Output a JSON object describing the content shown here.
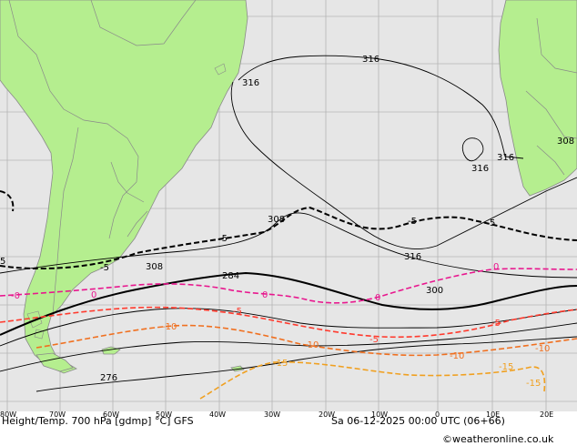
{
  "map": {
    "title": "Height/Temp. 700 hPa [gdmp] °C] GFS",
    "valid_time": "Sa 06-12-2025 00:00 UTC (06+66)",
    "credit": "©weatheronline.co.uk",
    "colors": {
      "ocean": "#e6e6e6",
      "land": "#b5ee8f",
      "border": "#8a8a8a",
      "grid": "#b4b4b4",
      "height": "#000000",
      "temp_neg5": "#000000",
      "temp_0": "#e8178e",
      "temp_minus5": "#ff3a2d",
      "temp_minus10": "#f07020",
      "temp_minus15": "#f0a020"
    },
    "longitude_labels": [
      "80W",
      "70W",
      "60W",
      "50W",
      "40W",
      "30W",
      "20W",
      "10W",
      "0",
      "10E",
      "20E"
    ],
    "height_labels": [
      "316",
      "316",
      "316",
      "316",
      "316",
      "308",
      "308",
      "308",
      "300",
      "284",
      "276"
    ],
    "temperature_labels": [
      "5",
      "-5",
      "-5",
      "-5",
      "5",
      "0",
      "0",
      "0",
      "0",
      "-0",
      "-5",
      "-5",
      "-5",
      "-10",
      "-10",
      "-10",
      "-10",
      "-15",
      "-15",
      "-15"
    ]
  }
}
